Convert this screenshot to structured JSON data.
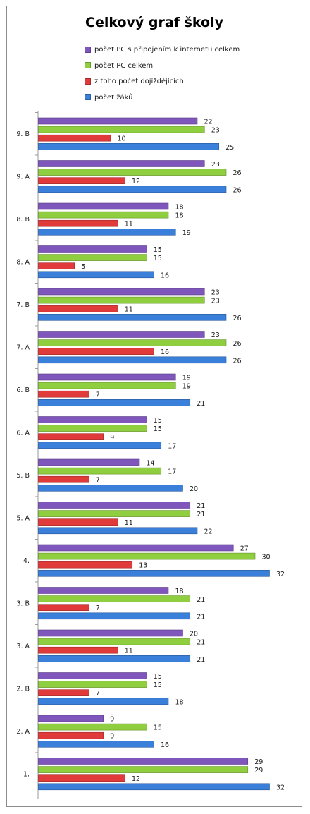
{
  "chart_data": {
    "type": "bar",
    "orientation": "horizontal",
    "title": "Celkový graf školy",
    "xlim": [
      0,
      34
    ],
    "grid": false,
    "legend_position": "top",
    "categories": [
      "9. B",
      "9. A",
      "8. B",
      "8. A",
      "7. B",
      "7. A",
      "6. B",
      "6. A",
      "5. B",
      "5. A",
      "4.",
      "3. B",
      "3. A",
      "2. B",
      "2. A",
      "1."
    ],
    "series": [
      {
        "name": "počet PC s připojením k internetu celkem",
        "color": "#7f56bc",
        "values": [
          22,
          23,
          18,
          15,
          23,
          23,
          19,
          15,
          14,
          21,
          27,
          18,
          20,
          15,
          9,
          29
        ]
      },
      {
        "name": "počet PC celkem",
        "color": "#8fce3f",
        "values": [
          23,
          26,
          18,
          15,
          23,
          26,
          19,
          15,
          17,
          21,
          30,
          21,
          21,
          15,
          15,
          29
        ]
      },
      {
        "name": "z toho počet dojíždějících",
        "color": "#e03a3a",
        "values": [
          10,
          12,
          11,
          5,
          11,
          16,
          7,
          9,
          7,
          11,
          13,
          7,
          11,
          7,
          9,
          12
        ]
      },
      {
        "name": "počet žáků",
        "color": "#3a7fd9",
        "values": [
          25,
          26,
          19,
          16,
          26,
          26,
          21,
          17,
          20,
          22,
          32,
          21,
          21,
          18,
          16,
          32
        ]
      }
    ]
  }
}
